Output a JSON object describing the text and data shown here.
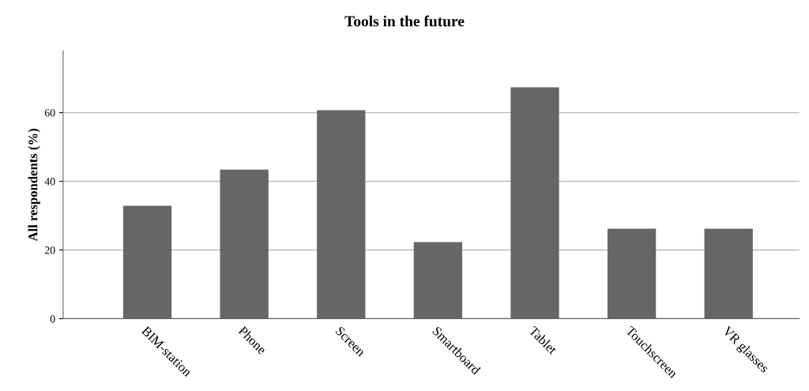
{
  "chart_data": {
    "type": "bar",
    "title": "Tools in the future",
    "ylabel": "All respondents (%)",
    "categories": [
      "BIM-station",
      "Phone",
      "Screen",
      "Smartboard",
      "Tablet",
      "Touchscreen",
      "VR glasses"
    ],
    "values": [
      32.9,
      43.4,
      60.7,
      22.3,
      67.4,
      26.2,
      26.2
    ],
    "color": "#666666",
    "ylim": [
      0,
      78
    ],
    "yticks": [
      0,
      20,
      40,
      60
    ],
    "grid": "y",
    "legend": false
  }
}
